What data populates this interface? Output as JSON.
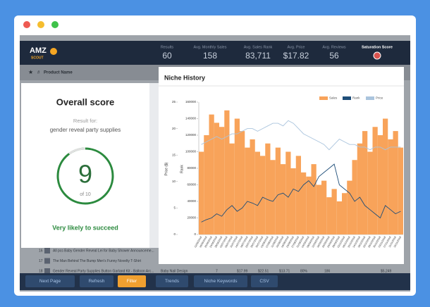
{
  "header": {
    "logo": "AMZ",
    "logo_sub": "SCOUT",
    "stats": [
      {
        "label": "Results",
        "value": "60"
      },
      {
        "label": "Avg. Monthly Sales",
        "value": "158"
      },
      {
        "label": "Avg. Sales Rank",
        "value": "83,711"
      },
      {
        "label": "Avg. Price",
        "value": "$17.82"
      },
      {
        "label": "Avg. Reviews",
        "value": "56"
      },
      {
        "label": "Saturation Score"
      }
    ]
  },
  "table": {
    "columns": [
      "#",
      "Product Name"
    ],
    "rows": [
      [
        "16",
        "All pcs Baby Gender Reveal Lei for Baby Shower Announceme..."
      ],
      [
        "17",
        "The Man Behind The Bump Men's Funny Novelty T-Shirt"
      ],
      [
        "18",
        "Gender Reveal Party Supplies Button Garland Kit - Balloon Arc...",
        "Baby Nail Design",
        "7",
        "$17.99",
        "$22.51",
        "$13.71",
        "80%",
        "186",
        "$5,249"
      ]
    ]
  },
  "score": {
    "title": "Overall score",
    "result_for": "Result for:",
    "query": "gender reveal party supplies",
    "value": "9",
    "of": "of 10",
    "verdict": "Very likely to succeed"
  },
  "toolbar": [
    "Next Page",
    "Refresh",
    "Filter",
    "Trends",
    "Niche Keywords",
    "CSV"
  ],
  "chart_data": {
    "type": "bar-line",
    "title": "Niche History",
    "ylabel": "Price ($)",
    "y2label": "Rank",
    "categories": [
      "12/06/2018",
      "16/06/2018",
      "20/06/2018",
      "24/06/2018",
      "28/06/2018",
      "02/07/2018",
      "06/07/2018",
      "10/07/2018",
      "14/07/2018",
      "18/07/2018",
      "22/07/2018",
      "26/07/2018",
      "30/07/2018",
      "03/08/2018",
      "07/08/2018",
      "11/08/2018",
      "15/08/2018",
      "19/08/2018",
      "23/08/2018",
      "27/08/2018",
      "31/08/2018",
      "04/09/2018",
      "08/09/2018",
      "12/09/2018",
      "16/09/2018",
      "20/09/2018",
      "24/09/2018",
      "28/09/2018",
      "02/10/2018",
      "06/10/2018",
      "10/10/2018",
      "14/10/2018",
      "18/10/2018",
      "22/10/2018",
      "26/10/2018",
      "30/10/2018",
      "03/11/2018",
      "07/11/2018",
      "11/11/2018",
      "15/11/2018"
    ],
    "series": [
      {
        "name": "Sales",
        "color": "#f8a35a",
        "kind": "bar",
        "axis": "y2",
        "values": [
          100000,
          120000,
          145000,
          135000,
          130000,
          150000,
          110000,
          140000,
          125000,
          105000,
          115000,
          100000,
          95000,
          110000,
          90000,
          105000,
          85000,
          100000,
          80000,
          95000,
          75000,
          70000,
          85000,
          60000,
          65000,
          45000,
          55000,
          40000,
          50000,
          65000,
          90000,
          110000,
          125000,
          100000,
          130000,
          120000,
          140000,
          115000,
          125000,
          105000
        ]
      },
      {
        "name": "Rank",
        "color": "#1f4e79",
        "kind": "line",
        "axis": "y2",
        "values": [
          15000,
          18000,
          20000,
          25000,
          22000,
          30000,
          35000,
          28000,
          32000,
          40000,
          38000,
          35000,
          45000,
          42000,
          40000,
          48000,
          50000,
          45000,
          55000,
          52000,
          60000,
          65000,
          58000,
          70000,
          75000,
          80000,
          85000,
          60000,
          55000,
          50000,
          40000,
          45000,
          35000,
          30000,
          25000,
          20000,
          35000,
          30000,
          25000,
          28000
        ]
      },
      {
        "name": "Price",
        "color": "#aac4dd",
        "kind": "line",
        "values": [
          17,
          17.5,
          18,
          18.5,
          18,
          18.5,
          19,
          19,
          19.5,
          20,
          20,
          19.5,
          20,
          20.5,
          21,
          21,
          20.5,
          21.5,
          21,
          20,
          19,
          18.5,
          18,
          17.5,
          17,
          16,
          17,
          18,
          17.5,
          17,
          17,
          16.5,
          16.5,
          16,
          16.5,
          16.5,
          16,
          16.5,
          16.5,
          16.5
        ]
      }
    ],
    "ylim": [
      0,
      25
    ],
    "yticks": [
      0,
      5,
      10,
      15,
      20,
      25
    ],
    "y2lim": [
      0,
      160000
    ],
    "y2ticks": [
      0,
      20000,
      40000,
      60000,
      80000,
      100000,
      120000,
      140000,
      160000
    ],
    "legend": "top-right"
  }
}
